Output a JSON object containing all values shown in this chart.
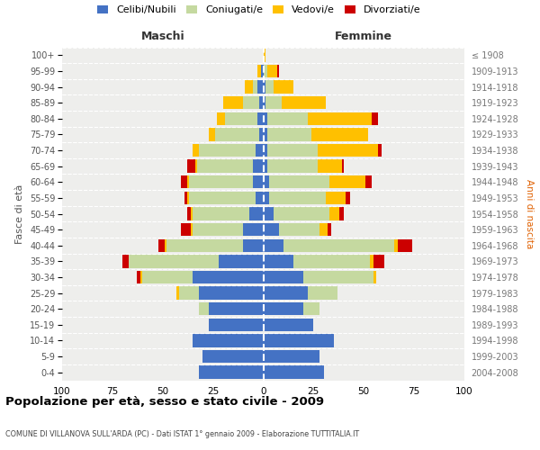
{
  "age_groups": [
    "0-4",
    "5-9",
    "10-14",
    "15-19",
    "20-24",
    "25-29",
    "30-34",
    "35-39",
    "40-44",
    "45-49",
    "50-54",
    "55-59",
    "60-64",
    "65-69",
    "70-74",
    "75-79",
    "80-84",
    "85-89",
    "90-94",
    "95-99",
    "100+"
  ],
  "birth_years": [
    "2004-2008",
    "1999-2003",
    "1994-1998",
    "1989-1993",
    "1984-1988",
    "1979-1983",
    "1974-1978",
    "1969-1973",
    "1964-1968",
    "1959-1963",
    "1954-1958",
    "1949-1953",
    "1944-1948",
    "1939-1943",
    "1934-1938",
    "1929-1933",
    "1924-1928",
    "1919-1923",
    "1914-1918",
    "1909-1913",
    "≤ 1908"
  ],
  "maschi": {
    "celibi": [
      32,
      30,
      35,
      27,
      27,
      32,
      35,
      22,
      10,
      10,
      7,
      4,
      5,
      5,
      4,
      2,
      3,
      2,
      3,
      1,
      0
    ],
    "coniugati": [
      0,
      0,
      0,
      0,
      5,
      10,
      25,
      45,
      38,
      25,
      28,
      33,
      32,
      28,
      28,
      22,
      16,
      8,
      2,
      0,
      0
    ],
    "vedovi": [
      0,
      0,
      0,
      0,
      0,
      1,
      1,
      0,
      1,
      1,
      1,
      1,
      1,
      1,
      3,
      3,
      4,
      10,
      4,
      2,
      0
    ],
    "divorziati": [
      0,
      0,
      0,
      0,
      0,
      0,
      2,
      3,
      3,
      5,
      2,
      1,
      3,
      4,
      0,
      0,
      0,
      0,
      0,
      0,
      0
    ]
  },
  "femmine": {
    "nubili": [
      30,
      28,
      35,
      25,
      20,
      22,
      20,
      15,
      10,
      8,
      5,
      3,
      3,
      2,
      2,
      2,
      2,
      1,
      1,
      0,
      0
    ],
    "coniugate": [
      0,
      0,
      0,
      0,
      8,
      15,
      35,
      38,
      55,
      20,
      28,
      28,
      30,
      25,
      25,
      22,
      20,
      8,
      4,
      2,
      0
    ],
    "vedove": [
      0,
      0,
      0,
      0,
      0,
      0,
      1,
      2,
      2,
      4,
      5,
      10,
      18,
      12,
      30,
      28,
      32,
      22,
      10,
      5,
      1
    ],
    "divorziate": [
      0,
      0,
      0,
      0,
      0,
      0,
      0,
      5,
      7,
      2,
      2,
      2,
      3,
      1,
      2,
      0,
      3,
      0,
      0,
      1,
      0
    ]
  },
  "color_celibi": "#4472c4",
  "color_coniugati": "#c5d9a0",
  "color_vedovi": "#ffc000",
  "color_divorziati": "#cc0000",
  "title": "Popolazione per età, sesso e stato civile - 2009",
  "subtitle": "COMUNE DI VILLANOVA SULL'ARDA (PC) - Dati ISTAT 1° gennaio 2009 - Elaborazione TUTTITALIA.IT",
  "xlabel_left": "Maschi",
  "xlabel_right": "Femmine",
  "ylabel_left": "Fasce di età",
  "ylabel_right": "Anni di nascita",
  "xlim": 100,
  "bg_color": "#eeeeec",
  "grid_color": "#cccccc",
  "legend_labels": [
    "Celibi/Nubili",
    "Coniugati/e",
    "Vedovi/e",
    "Divorziati/e"
  ]
}
